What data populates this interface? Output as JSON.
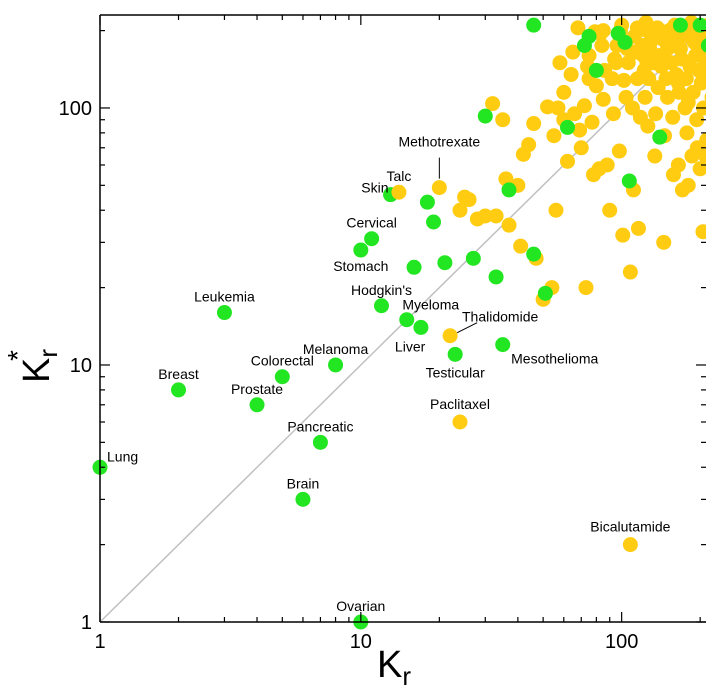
{
  "chart_data": {
    "type": "scatter",
    "xscale": "log",
    "yscale": "log",
    "xlim": [
      1,
      230
    ],
    "ylim": [
      1,
      230
    ],
    "xlabel": {
      "main": "K",
      "sub": "r"
    },
    "ylabel": {
      "main": "K",
      "sub": "r",
      "sup": "*"
    },
    "x_tick_labels": [
      {
        "value": 1,
        "label": "1"
      },
      {
        "value": 10,
        "label": "10"
      },
      {
        "value": 100,
        "label": "100"
      }
    ],
    "y_tick_labels": [
      {
        "value": 1,
        "label": "1"
      },
      {
        "value": 10,
        "label": "10"
      },
      {
        "value": 100,
        "label": "100"
      }
    ],
    "diagonal": {
      "from": [
        1,
        1
      ],
      "to": [
        230,
        230
      ],
      "color": "#c0c0c0"
    },
    "colors": {
      "cancer": "#22e622",
      "drug": "#ffcc11"
    },
    "labeled_points": [
      {
        "name": "Lung",
        "x": 1.0,
        "y": 4.0,
        "group": "cancer"
      },
      {
        "name": "Breast",
        "x": 2.0,
        "y": 8.0,
        "group": "cancer"
      },
      {
        "name": "Leukemia",
        "x": 3.0,
        "y": 16.0,
        "group": "cancer"
      },
      {
        "name": "Prostate",
        "x": 4.0,
        "y": 7.0,
        "group": "cancer"
      },
      {
        "name": "Colorectal",
        "x": 5.0,
        "y": 9.0,
        "group": "cancer"
      },
      {
        "name": "Brain",
        "x": 6.0,
        "y": 3.0,
        "group": "cancer"
      },
      {
        "name": "Pancreatic",
        "x": 7.0,
        "y": 5.0,
        "group": "cancer"
      },
      {
        "name": "Melanoma",
        "x": 8.0,
        "y": 10.0,
        "group": "cancer"
      },
      {
        "name": "Ovarian",
        "x": 10.0,
        "y": 1.0,
        "group": "cancer"
      },
      {
        "name": "Stomach",
        "x": 10.0,
        "y": 28.0,
        "group": "cancer"
      },
      {
        "name": "Cervical",
        "x": 11.0,
        "y": 31.0,
        "group": "cancer"
      },
      {
        "name": "Hodgkin's",
        "x": 12.0,
        "y": 17.0,
        "group": "cancer"
      },
      {
        "name": "Skin",
        "x": 13.0,
        "y": 46.0,
        "group": "cancer"
      },
      {
        "name": "Myeloma",
        "x": 15.0,
        "y": 15.0,
        "group": "cancer"
      },
      {
        "name": "Liver",
        "x": 17.0,
        "y": 14.0,
        "group": "cancer"
      },
      {
        "name": "Testicular",
        "x": 23.0,
        "y": 11.0,
        "group": "cancer"
      },
      {
        "name": "Mesothelioma",
        "x": 35.0,
        "y": 12.0,
        "group": "cancer"
      },
      {
        "name": "Talc",
        "x": 14.0,
        "y": 47.0,
        "group": "drug"
      },
      {
        "name": "Methotrexate",
        "x": 20.0,
        "y": 49.0,
        "group": "drug"
      },
      {
        "name": "Thalidomide",
        "x": 22.0,
        "y": 13.0,
        "group": "drug"
      },
      {
        "name": "Paclitaxel",
        "x": 24.0,
        "y": 6.0,
        "group": "drug"
      },
      {
        "name": "Bicalutamide",
        "x": 108.0,
        "y": 2.0,
        "group": "drug"
      }
    ],
    "unlabeled_cancer": [
      [
        16,
        24
      ],
      [
        18,
        43
      ],
      [
        19,
        36
      ],
      [
        21,
        25
      ],
      [
        27,
        26
      ],
      [
        30,
        93
      ],
      [
        33,
        22
      ],
      [
        37,
        48
      ],
      [
        46,
        27
      ],
      [
        46,
        210
      ],
      [
        51,
        19
      ],
      [
        62,
        84
      ],
      [
        72,
        175
      ],
      [
        75,
        190
      ],
      [
        80,
        140
      ],
      [
        97,
        195
      ],
      [
        103,
        180
      ],
      [
        107,
        52
      ],
      [
        140,
        77
      ],
      [
        168,
        210
      ],
      [
        200,
        210
      ],
      [
        215,
        175
      ]
    ],
    "unlabeled_drugs": [
      [
        24,
        40
      ],
      [
        25,
        45
      ],
      [
        26,
        44
      ],
      [
        28,
        37
      ],
      [
        30,
        38
      ],
      [
        32,
        104
      ],
      [
        33,
        38
      ],
      [
        35,
        90
      ],
      [
        36,
        53
      ],
      [
        37,
        35
      ],
      [
        40,
        50
      ],
      [
        41,
        29
      ],
      [
        42,
        66
      ],
      [
        44,
        72
      ],
      [
        46,
        87
      ],
      [
        47,
        26
      ],
      [
        50,
        18
      ],
      [
        52,
        101
      ],
      [
        54,
        20
      ],
      [
        55,
        78
      ],
      [
        56,
        40
      ],
      [
        57,
        100
      ],
      [
        58,
        150
      ],
      [
        60,
        115
      ],
      [
        60,
        90
      ],
      [
        62,
        62
      ],
      [
        64,
        135
      ],
      [
        65,
        165
      ],
      [
        66,
        95
      ],
      [
        68,
        205
      ],
      [
        69,
        82
      ],
      [
        70,
        70
      ],
      [
        72,
        102
      ],
      [
        73,
        20
      ],
      [
        74,
        145
      ],
      [
        75,
        160
      ],
      [
        77,
        88
      ],
      [
        78,
        55
      ],
      [
        79,
        198
      ],
      [
        80,
        122
      ],
      [
        82,
        58
      ],
      [
        83,
        195
      ],
      [
        84,
        175
      ],
      [
        85,
        108
      ],
      [
        86,
        140
      ],
      [
        88,
        60
      ],
      [
        90,
        40
      ],
      [
        92,
        130
      ],
      [
        93,
        95
      ],
      [
        94,
        155
      ],
      [
        96,
        175
      ],
      [
        98,
        68
      ],
      [
        99,
        200
      ],
      [
        100,
        210
      ],
      [
        101,
        32
      ],
      [
        102,
        128
      ],
      [
        104,
        110
      ],
      [
        106,
        150
      ],
      [
        108,
        23
      ],
      [
        110,
        100
      ],
      [
        111,
        48
      ],
      [
        112,
        190
      ],
      [
        113,
        165
      ],
      [
        115,
        130
      ],
      [
        116,
        34
      ],
      [
        118,
        92
      ],
      [
        120,
        175
      ],
      [
        121,
        160
      ],
      [
        122,
        140
      ],
      [
        123,
        110
      ],
      [
        124,
        215
      ],
      [
        125,
        200
      ],
      [
        126,
        85
      ],
      [
        127,
        130
      ],
      [
        128,
        170
      ],
      [
        130,
        183
      ],
      [
        132,
        150
      ],
      [
        134,
        65
      ],
      [
        135,
        95
      ],
      [
        137,
        205
      ],
      [
        138,
        120
      ],
      [
        140,
        160
      ],
      [
        142,
        145
      ],
      [
        144,
        185
      ],
      [
        145,
        30
      ],
      [
        146,
        78
      ],
      [
        148,
        130
      ],
      [
        150,
        110
      ],
      [
        152,
        200
      ],
      [
        153,
        175
      ],
      [
        155,
        150
      ],
      [
        157,
        92
      ],
      [
        158,
        55
      ],
      [
        160,
        210
      ],
      [
        162,
        135
      ],
      [
        164,
        185
      ],
      [
        165,
        60
      ],
      [
        166,
        115
      ],
      [
        168,
        170
      ],
      [
        170,
        155
      ],
      [
        171,
        48
      ],
      [
        173,
        200
      ],
      [
        175,
        100
      ],
      [
        177,
        130
      ],
      [
        178,
        80
      ],
      [
        180,
        50
      ],
      [
        181,
        190
      ],
      [
        183,
        145
      ],
      [
        185,
        215
      ],
      [
        186,
        65
      ],
      [
        188,
        115
      ],
      [
        190,
        180
      ],
      [
        192,
        160
      ],
      [
        194,
        90
      ],
      [
        196,
        205
      ],
      [
        198,
        140
      ],
      [
        200,
        58
      ],
      [
        202,
        125
      ],
      [
        203,
        185
      ],
      [
        205,
        33
      ],
      [
        206,
        100
      ],
      [
        208,
        170
      ],
      [
        210,
        150
      ],
      [
        212,
        75
      ],
      [
        214,
        210
      ],
      [
        216,
        195
      ],
      [
        218,
        130
      ],
      [
        220,
        160
      ],
      [
        222,
        110
      ],
      [
        224,
        180
      ],
      [
        226,
        85
      ],
      [
        228,
        140
      ],
      [
        210,
        65
      ],
      [
        195,
        70
      ],
      [
        180,
        105
      ],
      [
        165,
        125
      ],
      [
        150,
        170
      ],
      [
        135,
        190
      ],
      [
        125,
        150
      ],
      [
        115,
        205
      ],
      [
        105,
        170
      ],
      [
        95,
        150
      ],
      [
        85,
        200
      ],
      [
        75,
        130
      ]
    ]
  }
}
